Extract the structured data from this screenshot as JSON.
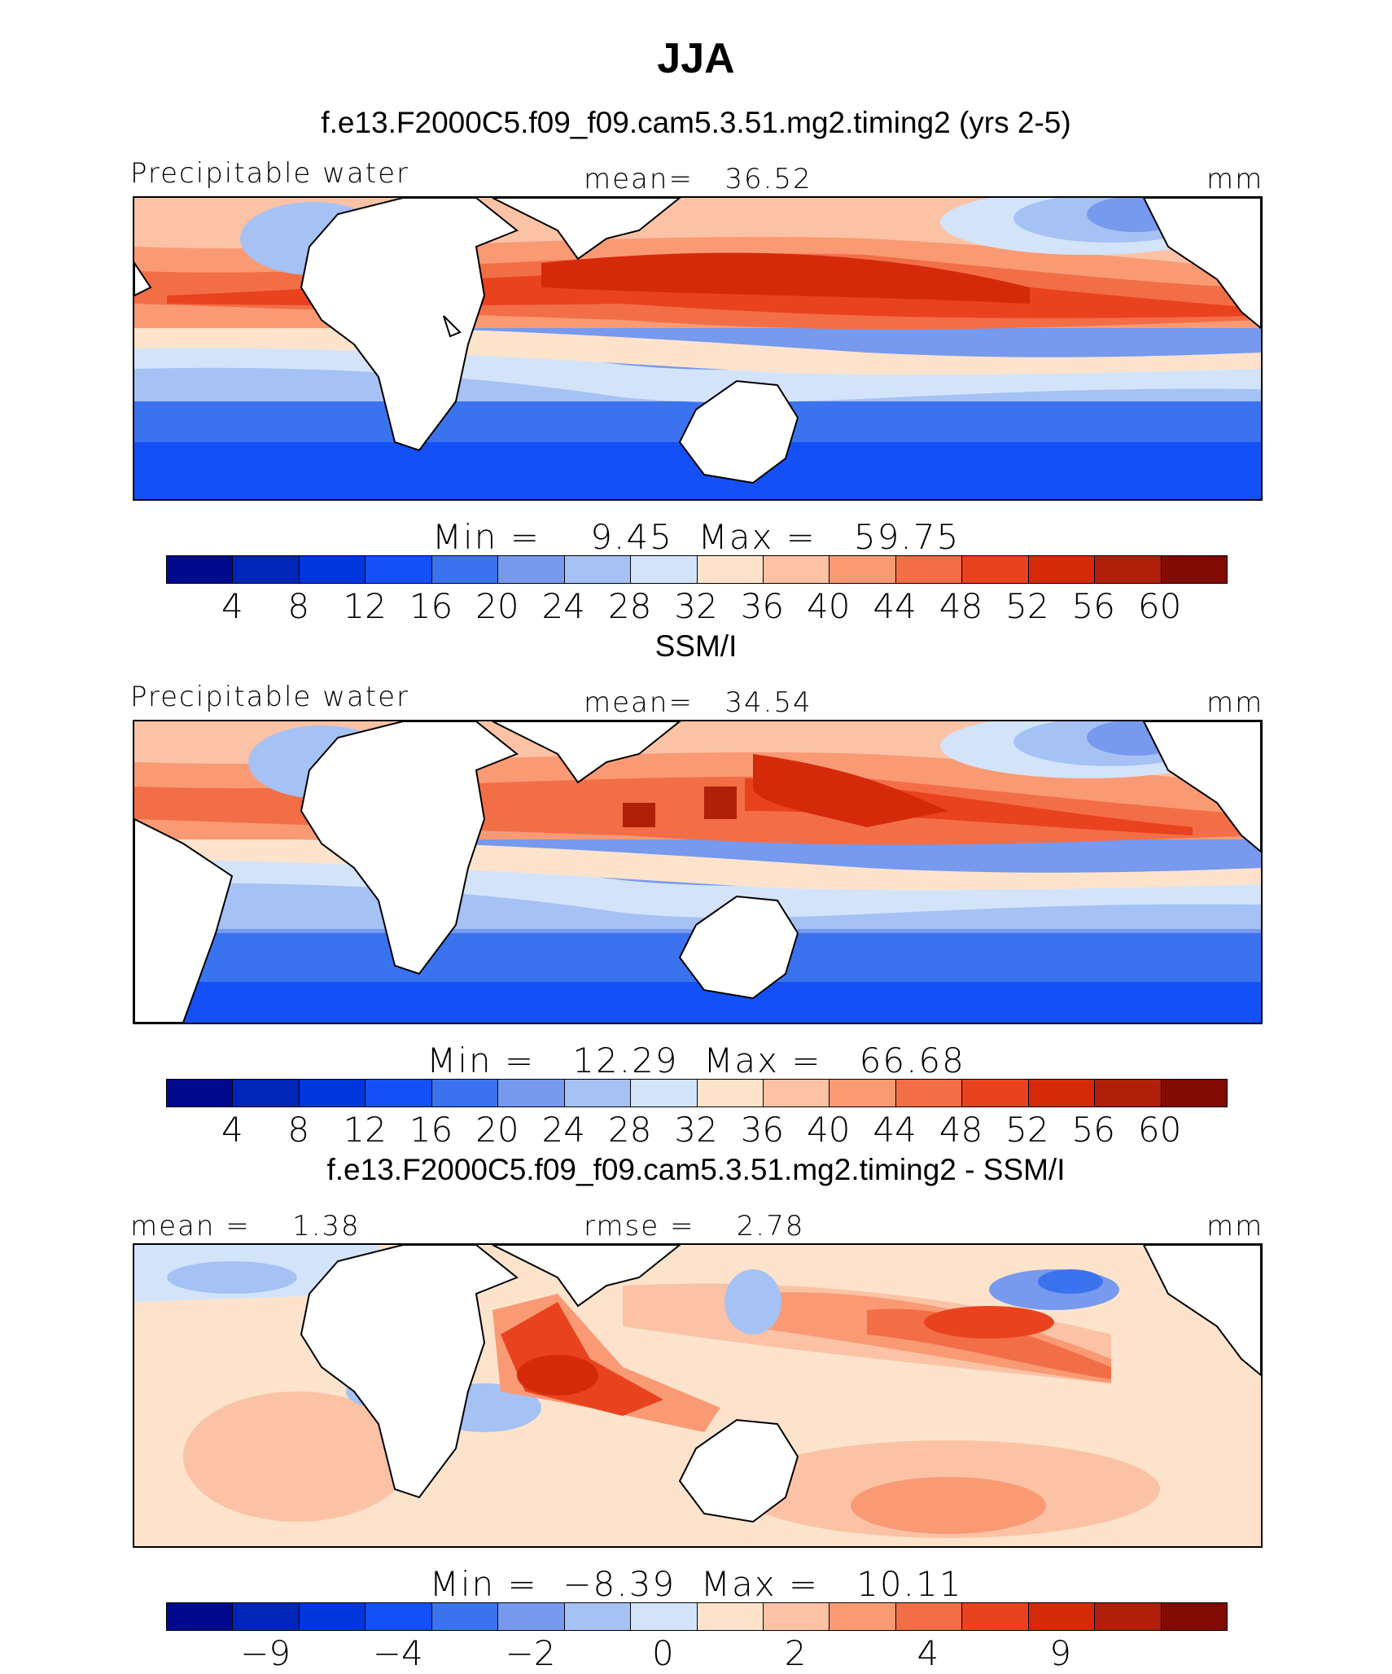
{
  "title": "JJA",
  "colors": {
    "scale": [
      "#000a8c",
      "#0026b8",
      "#0037dd",
      "#1450f5",
      "#3b72ee",
      "#7799ee",
      "#a6c1f4",
      "#d3e4fa",
      "#fde3cc",
      "#fcc2a5",
      "#f99a74",
      "#f26e47",
      "#e9421f",
      "#d52a0a",
      "#b01f0a",
      "#820a05"
    ],
    "land": "#ffffff",
    "coast": "#000000"
  },
  "panels": [
    {
      "title": "f.e13.F2000C5.f09_f09.cam5.3.51.mg2.timing2 (yrs 2-5)",
      "left_label": "Precipitable water",
      "center_label": "mean=   36.52",
      "right_label": "mm",
      "minmax": "Min =    9.45  Max =   59.75",
      "ticks": [
        "4",
        "8",
        "12",
        "16",
        "20",
        "24",
        "28",
        "32",
        "36",
        "40",
        "44",
        "48",
        "52",
        "56",
        "60"
      ]
    },
    {
      "title": "SSM/I",
      "left_label": "Precipitable water",
      "center_label": "mean=   34.54",
      "right_label": "mm",
      "minmax": "Min =   12.29  Max =   66.68",
      "ticks": [
        "4",
        "8",
        "12",
        "16",
        "20",
        "24",
        "28",
        "32",
        "36",
        "40",
        "44",
        "48",
        "52",
        "56",
        "60"
      ]
    },
    {
      "title": "f.e13.F2000C5.f09_f09.cam5.3.51.mg2.timing2 - SSM/I",
      "left_label": "mean =    1.38",
      "center_label": "rmse =    2.78",
      "right_label": "mm",
      "minmax": "Min =  −8.39  Max =   10.11",
      "ticks": [
        "−9",
        "−4",
        "−2",
        "0",
        "2",
        "4",
        "9"
      ]
    }
  ]
}
